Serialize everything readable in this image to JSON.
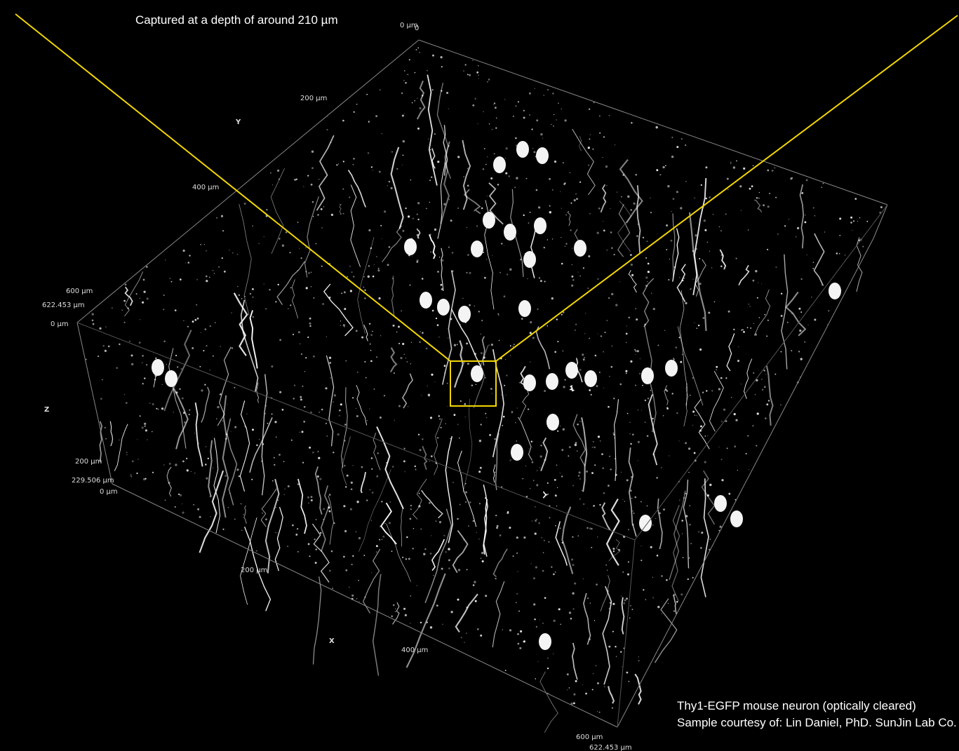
{
  "caption": "Captured at a depth of around 210 µm",
  "axis_labels": [
    "0 µm",
    "0",
    "200 µm",
    "Y",
    "400 µm",
    "600 µm",
    "622.453 µm",
    "0 µm",
    "Z",
    "200 µm",
    "229.506 µm",
    "0 µm",
    "200 µm",
    "X",
    "400 µm",
    "600 µm",
    "622.453 µm"
  ],
  "credits": [
    "Thy1-EGFP mouse neuron (optically cleared)",
    "Sample courtesy of: Lin Daniel, PhD. SunJin Lab Co."
  ]
}
